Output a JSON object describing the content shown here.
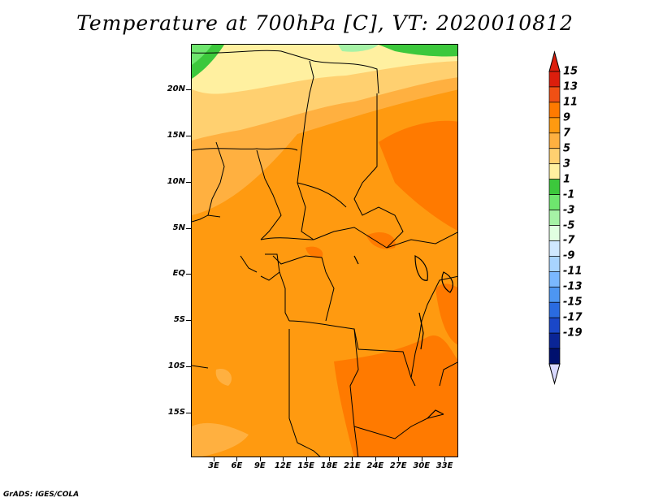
{
  "title": "Temperature at 700hPa [C], VT: 2020010812",
  "credit": "GrADS: IGES/COLA",
  "map": {
    "lat_labels": [
      {
        "text": "20N",
        "lat": 20
      },
      {
        "text": "15N",
        "lat": 15
      },
      {
        "text": "10N",
        "lat": 10
      },
      {
        "text": "5N",
        "lat": 5
      },
      {
        "text": "EQ",
        "lat": 0
      },
      {
        "text": "5S",
        "lat": -5
      },
      {
        "text": "10S",
        "lat": -10
      },
      {
        "text": "15S",
        "lat": -15
      }
    ],
    "lon_labels": [
      {
        "text": "3E",
        "lon": 3
      },
      {
        "text": "6E",
        "lon": 6
      },
      {
        "text": "9E",
        "lon": 9
      },
      {
        "text": "12E",
        "lon": 12
      },
      {
        "text": "15E",
        "lon": 15
      },
      {
        "text": "18E",
        "lon": 18
      },
      {
        "text": "21E",
        "lon": 21
      },
      {
        "text": "24E",
        "lon": 24
      },
      {
        "text": "27E",
        "lon": 27
      },
      {
        "text": "30E",
        "lon": 30
      },
      {
        "text": "33E",
        "lon": 33
      }
    ]
  },
  "colorbar": {
    "labels": [
      "15",
      "13",
      "11",
      "9",
      "7",
      "5",
      "3",
      "1",
      "-1",
      "-3",
      "-5",
      "-7",
      "-9",
      "-11",
      "-13",
      "-15",
      "-17",
      "-19"
    ],
    "colors": [
      "#dc1e0c",
      "#f05014",
      "#ff7a00",
      "#ff9a10",
      "#ffb040",
      "#ffd070",
      "#fff0a0",
      "#3cc83c",
      "#6ee66e",
      "#a6f2a6",
      "#e1ffe1",
      "#cfe8ff",
      "#a8d4ff",
      "#7ab8ff",
      "#4d96f2",
      "#2a6be0",
      "#1a47c8",
      "#0a2596",
      "#00106e"
    ],
    "bottom_color": "#d9d9ff"
  }
}
